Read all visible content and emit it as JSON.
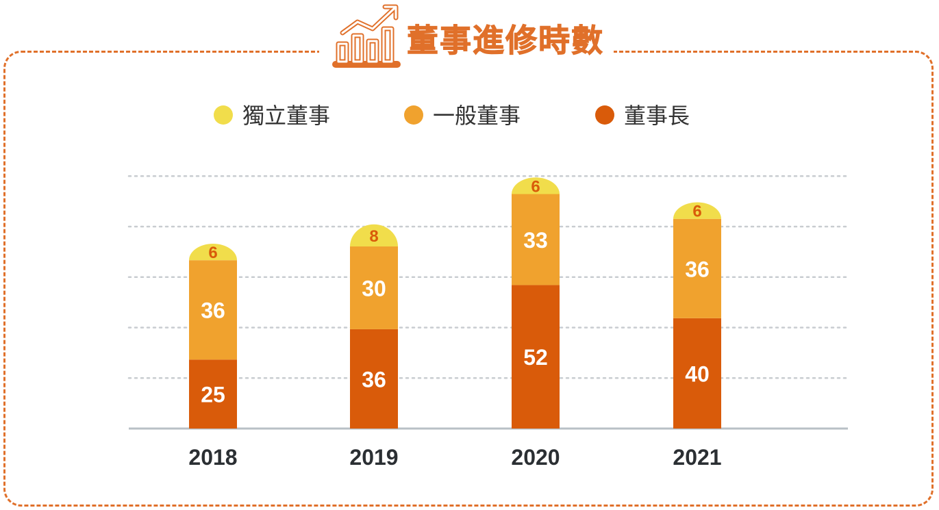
{
  "title": "董事進修時數",
  "colors": {
    "independent": "#f1dd4b",
    "general": "#f0a22e",
    "chairman": "#d95b0a",
    "frame": "#e0702a",
    "grid": "#c8ccd0",
    "axis": "#b8c0c6"
  },
  "icons": {
    "title": "bar-chart-trend-icon"
  },
  "chart_data": {
    "type": "bar",
    "stacked": true,
    "title": "董事進修時數",
    "categories": [
      "2018",
      "2019",
      "2020",
      "2021"
    ],
    "series": [
      {
        "name": "董事長",
        "values": [
          25,
          36,
          52,
          40
        ]
      },
      {
        "name": "一般董事",
        "values": [
          36,
          30,
          33,
          36
        ]
      },
      {
        "name": "獨立董事",
        "values": [
          6,
          8,
          6,
          6
        ]
      }
    ],
    "legend": [
      "獨立董事",
      "一般董事",
      "董事長"
    ],
    "legend_position": "top-center",
    "ylim": [
      0,
      102
    ],
    "grid": true,
    "xlabel": "",
    "ylabel": ""
  }
}
